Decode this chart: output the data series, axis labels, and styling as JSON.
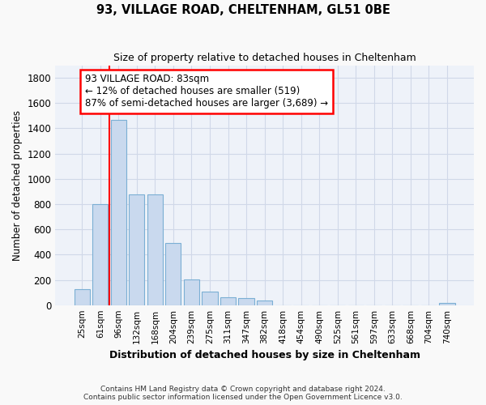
{
  "title": "93, VILLAGE ROAD, CHELTENHAM, GL51 0BE",
  "subtitle": "Size of property relative to detached houses in Cheltenham",
  "xlabel": "Distribution of detached houses by size in Cheltenham",
  "ylabel": "Number of detached properties",
  "bar_color": "#c9d9ee",
  "bar_edge_color": "#7bafd4",
  "background_color": "#eef2f9",
  "grid_color": "#d0d8e8",
  "fig_facecolor": "#f9f9f9",
  "categories": [
    "25sqm",
    "61sqm",
    "96sqm",
    "132sqm",
    "168sqm",
    "204sqm",
    "239sqm",
    "275sqm",
    "311sqm",
    "347sqm",
    "382sqm",
    "418sqm",
    "454sqm",
    "490sqm",
    "525sqm",
    "561sqm",
    "597sqm",
    "633sqm",
    "668sqm",
    "704sqm",
    "740sqm"
  ],
  "values": [
    125,
    800,
    1470,
    880,
    880,
    490,
    205,
    105,
    65,
    55,
    35,
    0,
    0,
    0,
    0,
    0,
    0,
    0,
    0,
    0,
    15
  ],
  "red_line_x": 1.5,
  "annotation_line1": "93 VILLAGE ROAD: 83sqm",
  "annotation_line2": "← 12% of detached houses are smaller (519)",
  "annotation_line3": "87% of semi-detached houses are larger (3,689) →",
  "ylim": [
    0,
    1900
  ],
  "yticks": [
    0,
    200,
    400,
    600,
    800,
    1000,
    1200,
    1400,
    1600,
    1800
  ],
  "footnote": "Contains HM Land Registry data © Crown copyright and database right 2024.\nContains public sector information licensed under the Open Government Licence v3.0.",
  "fig_width": 6.0,
  "fig_height": 5.0,
  "dpi": 100
}
